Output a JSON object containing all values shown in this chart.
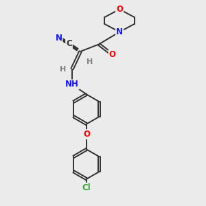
{
  "bg_color": "#ebebeb",
  "bond_color": "#303030",
  "atom_colors": {
    "O": "#ff0000",
    "N": "#1414ff",
    "C": "#303030",
    "Cl": "#3a9e3a",
    "H": "#808080"
  },
  "lw": 1.4,
  "fs": 8.5
}
